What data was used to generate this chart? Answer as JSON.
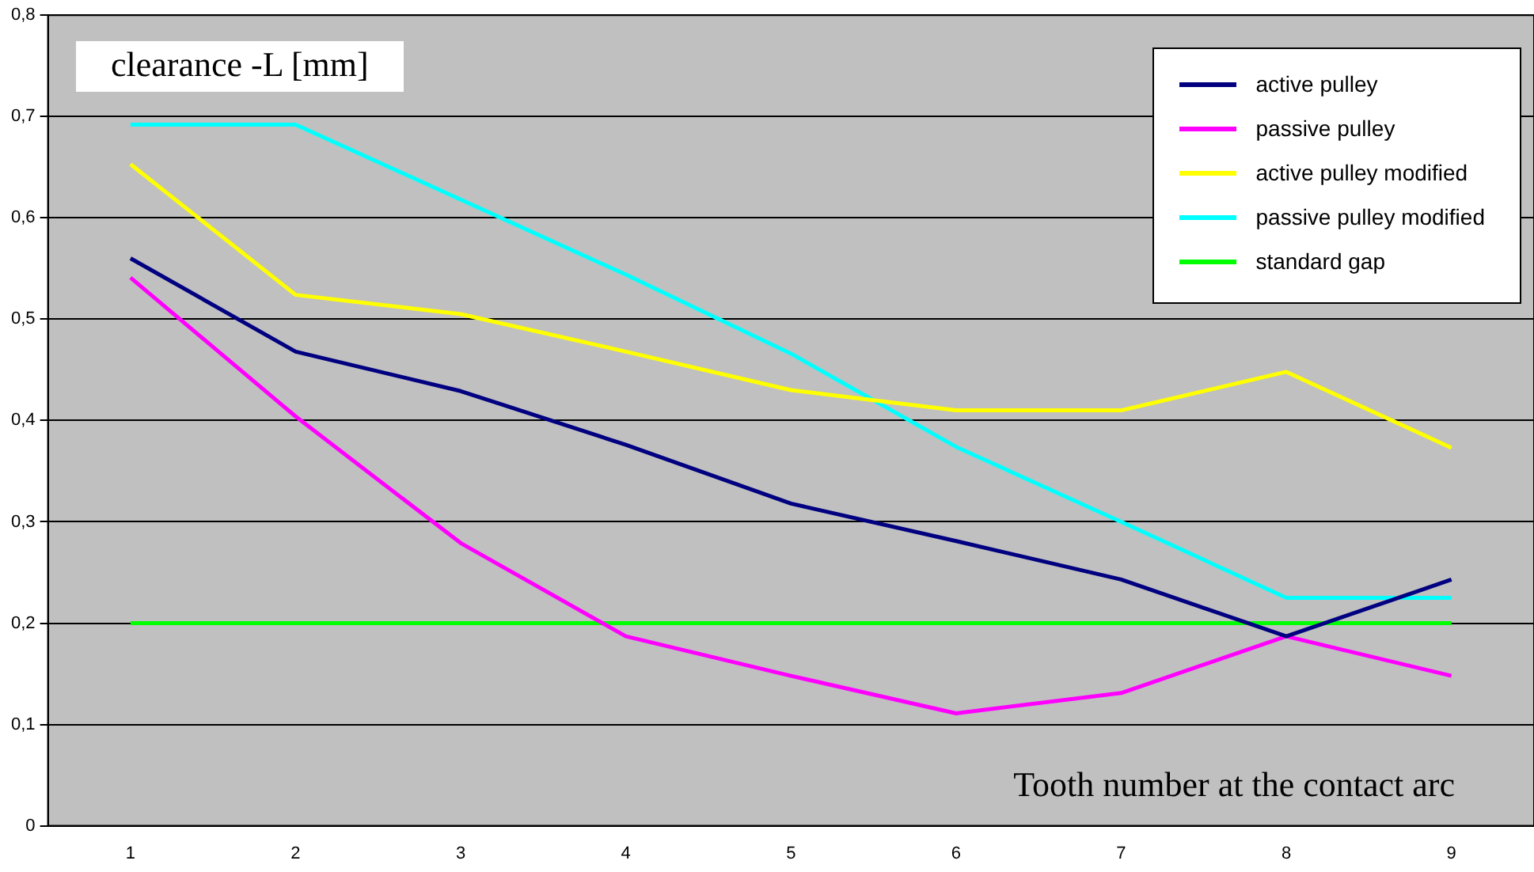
{
  "chart_data": {
    "type": "line",
    "title": "clearance  -L [mm]",
    "xlabel": "Tooth number at the contact arc",
    "categories": [
      "1",
      "2",
      "3",
      "4",
      "5",
      "6",
      "7",
      "8",
      "9"
    ],
    "series": [
      {
        "name": "active pulley",
        "color": "#000080",
        "values": [
          0.56,
          0.468,
          0.429,
          0.376,
          0.318,
          0.281,
          0.243,
          0.187,
          0.243
        ]
      },
      {
        "name": "passive pulley",
        "color": "#ff00ff",
        "values": [
          0.541,
          0.404,
          0.279,
          0.187,
          0.148,
          0.111,
          0.131,
          0.187,
          0.148
        ]
      },
      {
        "name": "active pulley modified",
        "color": "#ffff00",
        "values": [
          0.653,
          0.524,
          0.505,
          0.468,
          0.43,
          0.41,
          0.41,
          0.448,
          0.373
        ]
      },
      {
        "name": "passive pulley modified",
        "color": "#00ffff",
        "values": [
          0.692,
          0.692,
          0.618,
          0.544,
          0.466,
          0.374,
          0.3,
          0.225,
          0.225
        ]
      },
      {
        "name": "standard gap",
        "color": "#00ff00",
        "values": [
          0.2,
          0.2,
          0.2,
          0.2,
          0.2,
          0.2,
          0.2,
          0.2,
          0.2
        ]
      }
    ],
    "ylim": [
      0,
      0.8
    ],
    "yticks": [
      0,
      {
        "value": 0.1,
        "label": "0,1"
      },
      {
        "value": 0.2,
        "label": "0,2"
      },
      {
        "value": 0.3,
        "label": "0,3"
      },
      {
        "value": 0.4,
        "label": "0,4"
      },
      {
        "value": 0.5,
        "label": "0,5"
      },
      {
        "value": 0.6,
        "label": "0,6"
      },
      {
        "value": 0.7,
        "label": "0,7"
      },
      {
        "value": 0.8,
        "label": "0,8"
      }
    ],
    "grid": "y",
    "legend": "top right",
    "marker": "none",
    "line_style": "solid"
  }
}
